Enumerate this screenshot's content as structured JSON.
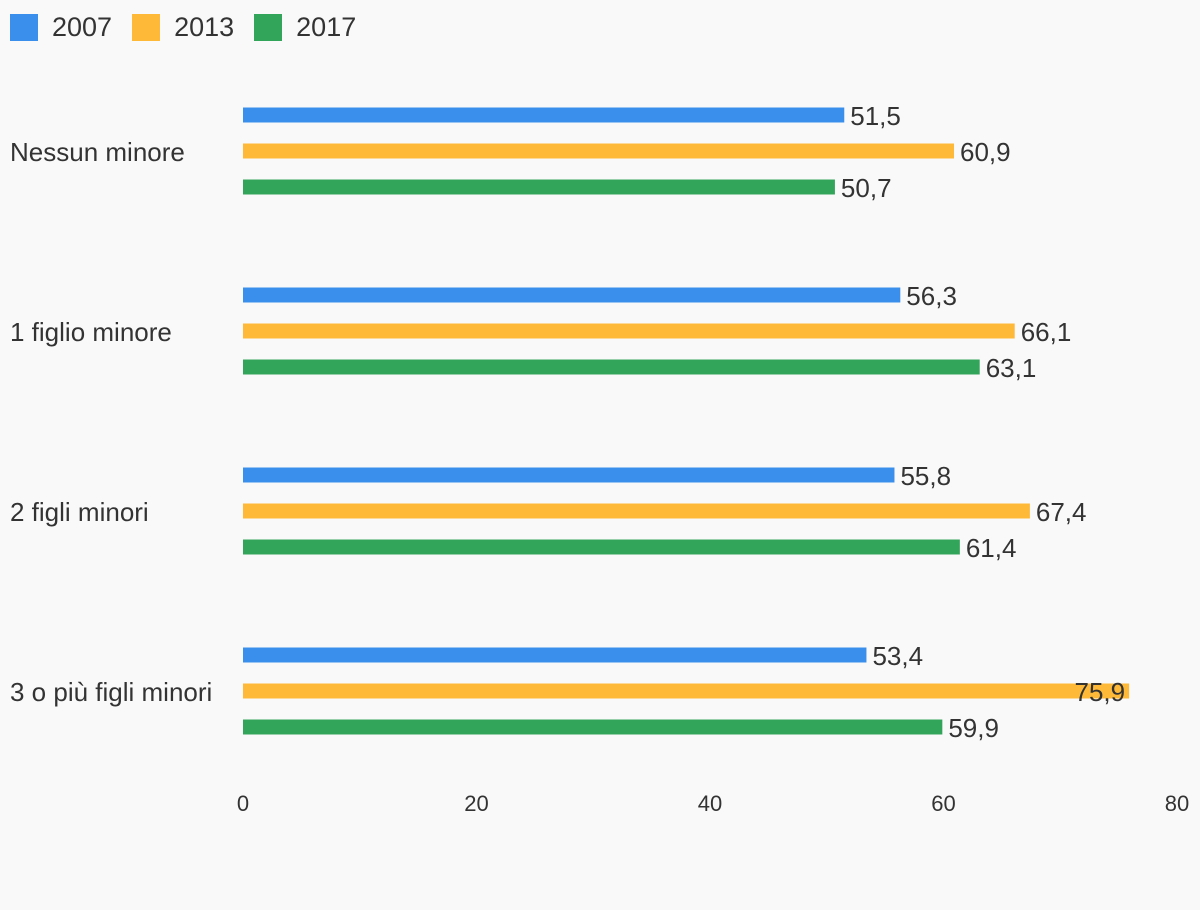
{
  "chart_data": {
    "type": "bar",
    "orientation": "horizontal",
    "categories": [
      "Nessun minore",
      "1 figlio minore",
      "2 figli minori",
      "3 o più figli minori"
    ],
    "series": [
      {
        "name": "2007",
        "color": "#3a8eec",
        "values": [
          51.5,
          56.3,
          55.8,
          53.4
        ],
        "labels": [
          "51,5",
          "56,3",
          "55,8",
          "53,4"
        ]
      },
      {
        "name": "2013",
        "color": "#ffb938",
        "values": [
          60.9,
          66.1,
          67.4,
          75.9
        ],
        "labels": [
          "60,9",
          "66,1",
          "67,4",
          "75,9"
        ]
      },
      {
        "name": "2017",
        "color": "#33a55a",
        "values": [
          50.7,
          63.1,
          61.4,
          59.9
        ],
        "labels": [
          "50,7",
          "63,1",
          "61,4",
          "59,9"
        ]
      }
    ],
    "xlim": [
      0,
      80
    ],
    "xticks": [
      0,
      20,
      40,
      60,
      80
    ],
    "title": "",
    "xlabel": "",
    "ylabel": "",
    "legend_position": "top-left",
    "grid": false
  }
}
